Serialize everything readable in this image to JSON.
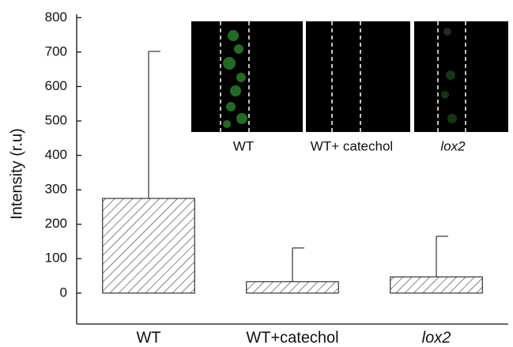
{
  "chart_data": {
    "type": "bar",
    "ylabel": "Intensity (r.u)",
    "categories": [
      "WT",
      "WT+catechol",
      "lox2"
    ],
    "values": [
      275,
      33,
      47
    ],
    "errors": [
      427,
      98,
      118
    ],
    "ylim": [
      -90,
      810
    ],
    "yticks": [
      0,
      100,
      200,
      300,
      400,
      500,
      600,
      700,
      800
    ],
    "color": "#333333"
  },
  "inset": {
    "labels": [
      "WT",
      "WT+ catechol",
      "lox2"
    ]
  }
}
